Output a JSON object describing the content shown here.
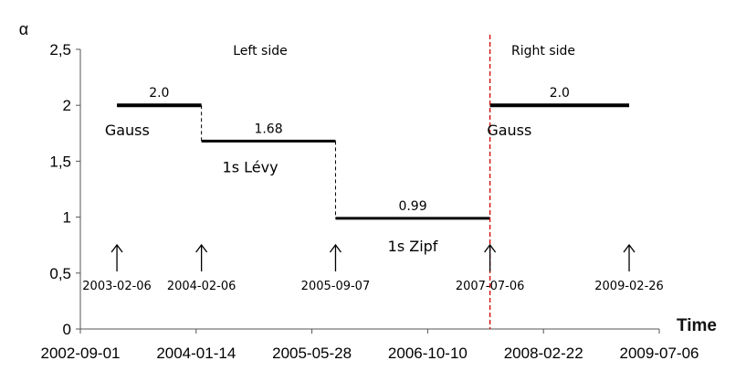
{
  "chart_data": {
    "type": "line",
    "title": "",
    "xlabel": "Time",
    "ylabel": "α",
    "xlim": [
      "2002-09-01",
      "2009-07-06"
    ],
    "ylim": [
      0,
      2.5
    ],
    "x_ticks": [
      "2002-09-01",
      "2004-01-14",
      "2005-05-28",
      "2006-10-10",
      "2008-02-22",
      "2009-07-06"
    ],
    "y_ticks": [
      "0",
      "0,5",
      "1",
      "1,5",
      "2",
      "2,5"
    ],
    "y_tick_values": [
      0,
      0.5,
      1,
      1.5,
      2,
      2.5
    ],
    "grid": false,
    "legend": "none",
    "series": [
      {
        "segments": [
          {
            "start": "2003-02-06",
            "end": "2004-02-06",
            "value": 2.0,
            "value_label": "2.0",
            "regime_label": "Gauss"
          },
          {
            "start": "2004-02-06",
            "end": "2005-09-07",
            "value": 1.68,
            "value_label": "1.68",
            "regime_label": "1s  Lévy"
          },
          {
            "start": "2005-09-07",
            "end": "2007-07-06",
            "value": 0.99,
            "value_label": "0.99",
            "regime_label": "1s  Zipf"
          },
          {
            "start": "2007-07-06",
            "end": "2009-02-26",
            "value": 2.0,
            "value_label": "2.0",
            "regime_label": "Gauss"
          }
        ]
      }
    ],
    "annotations": {
      "arrow_dates": [
        "2003-02-06",
        "2004-02-06",
        "2005-09-07",
        "2007-07-06",
        "2009-02-26"
      ],
      "split_date": "2007-07-06",
      "left_side_label": "Left side",
      "right_side_label": "Right side"
    },
    "colors": {
      "line": "#000000",
      "split_line": "#d00000"
    }
  }
}
